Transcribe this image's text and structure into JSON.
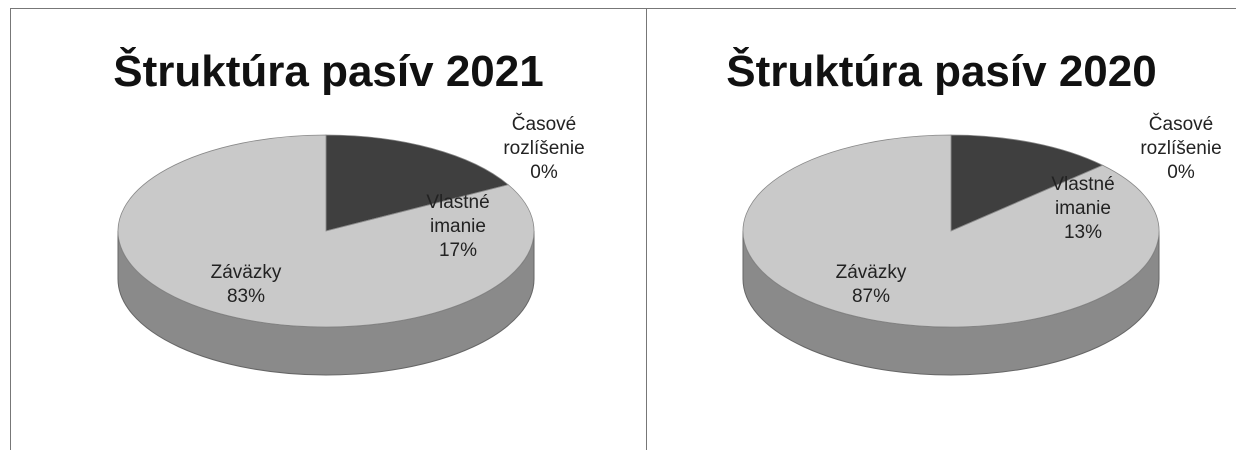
{
  "chart_data": [
    {
      "type": "pie",
      "title": "Štruktúra pasív 2021",
      "categories": [
        "Vlastné imanie",
        "Časové rozlíšenie",
        "Záväzky"
      ],
      "values": [
        17,
        0,
        83
      ],
      "value_labels": [
        "17%",
        "0%",
        "83%"
      ],
      "colors": [
        "#3f3f3f",
        "#7f7f7f",
        "#c9c9c9"
      ]
    },
    {
      "type": "pie",
      "title": "Štruktúra pasív 2020",
      "categories": [
        "Vlastné imanie",
        "Časové rozlíšenie",
        "Záväzky"
      ],
      "values": [
        13,
        0,
        87
      ],
      "value_labels": [
        "13%",
        "0%",
        "87%"
      ],
      "colors": [
        "#3f3f3f",
        "#7f7f7f",
        "#c9c9c9"
      ]
    }
  ]
}
